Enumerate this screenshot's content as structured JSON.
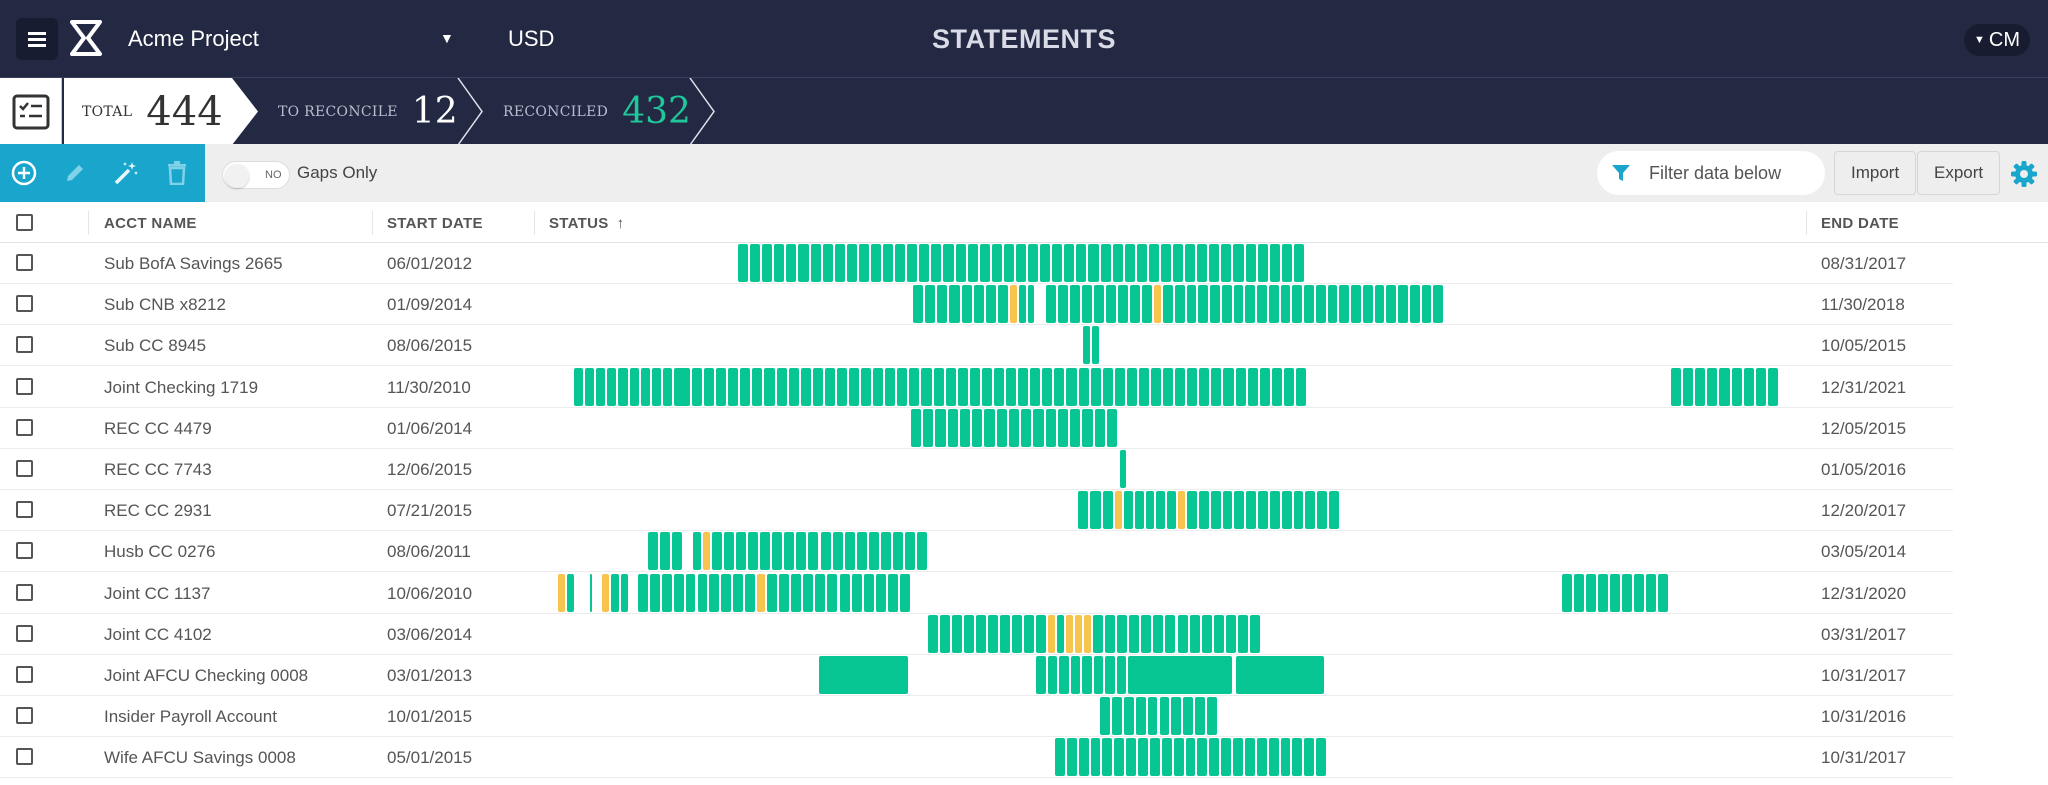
{
  "header": {
    "project": "Acme Project",
    "currency": "USD",
    "title": "STATEMENTS",
    "user": "CM",
    "colors": {
      "bar_bg": "#232843",
      "accent": "#1aa6cc",
      "reconciled": "#07c694",
      "gap": "#f7c54d"
    },
    "icons": [
      "menu-icon",
      "logo-icon",
      "dropdown-caret-icon"
    ]
  },
  "summary": {
    "total_label": "TOTAL",
    "total_value": "444",
    "to_reconcile_label": "TO RECONCILE",
    "to_reconcile_value": "12",
    "reconciled_label": "RECONCILED",
    "reconciled_value": "432"
  },
  "toolbar": {
    "toggle_state": "NO",
    "gaps_label": "Gaps Only",
    "filter_placeholder": "Filter data below",
    "import_label": "Import",
    "export_label": "Export",
    "icons": [
      "add-icon",
      "edit-icon",
      "magic-wand-icon",
      "trash-icon",
      "filter-icon",
      "gear-icon"
    ]
  },
  "columns": {
    "name": "ACCT NAME",
    "start": "START DATE",
    "status": "STATUS",
    "end": "END DATE"
  },
  "rows": [
    {
      "name": "Sub BofA Savings 2665",
      "start": "06/01/2012",
      "end": "08/31/2017"
    },
    {
      "name": "Sub CNB x8212",
      "start": "01/09/2014",
      "end": "11/30/2018"
    },
    {
      "name": "Sub CC 8945",
      "start": "08/06/2015",
      "end": "10/05/2015"
    },
    {
      "name": "Joint Checking 1719",
      "start": "11/30/2010",
      "end": "12/31/2021"
    },
    {
      "name": "REC CC 4479",
      "start": "01/06/2014",
      "end": "12/05/2015"
    },
    {
      "name": "REC CC 7743",
      "start": "12/06/2015",
      "end": "01/05/2016"
    },
    {
      "name": "REC CC 2931",
      "start": "07/21/2015",
      "end": "12/20/2017"
    },
    {
      "name": "Husb CC 0276",
      "start": "08/06/2011",
      "end": "03/05/2014"
    },
    {
      "name": "Joint CC 1137",
      "start": "10/06/2010",
      "end": "12/31/2020"
    },
    {
      "name": "Joint CC 4102",
      "start": "03/06/2014",
      "end": "03/31/2017"
    },
    {
      "name": "Joint AFCU Checking 0008",
      "start": "03/01/2013",
      "end": "10/31/2017"
    },
    {
      "name": "Insider Payroll Account",
      "start": "10/01/2015",
      "end": "10/31/2016"
    },
    {
      "name": "Wife AFCU Savings 0008",
      "start": "05/01/2015",
      "end": "10/31/2017"
    }
  ]
}
